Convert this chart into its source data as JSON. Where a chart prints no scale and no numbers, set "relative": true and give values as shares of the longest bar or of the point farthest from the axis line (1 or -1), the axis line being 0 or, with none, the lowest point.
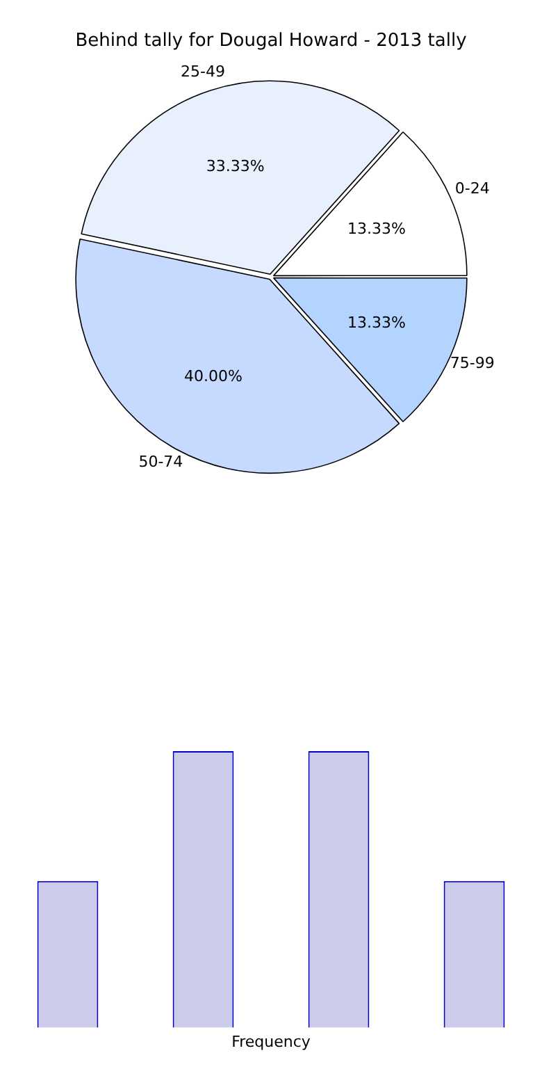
{
  "chart_data": [
    {
      "type": "pie",
      "title": "Behind tally for Dougal Howard - 2013 tally",
      "categories": [
        "0-24",
        "25-49",
        "50-74",
        "75-99"
      ],
      "values": [
        13.33,
        33.33,
        40.0,
        13.33
      ],
      "colors": [
        "#ffffff",
        "#e8f0fe",
        "#c6d9ff",
        "#b3d4ff"
      ],
      "value_labels": [
        "13.33%",
        "33.33%",
        "40.00%",
        "13.33%"
      ],
      "legend": false
    },
    {
      "type": "bar",
      "relative": true,
      "categories": [
        null,
        null,
        null,
        null
      ],
      "values": [
        0.53,
        1,
        1,
        0.53
      ],
      "color": "#ccccea",
      "xlabel": "Frequency",
      "grid": false,
      "legend": false
    }
  ]
}
